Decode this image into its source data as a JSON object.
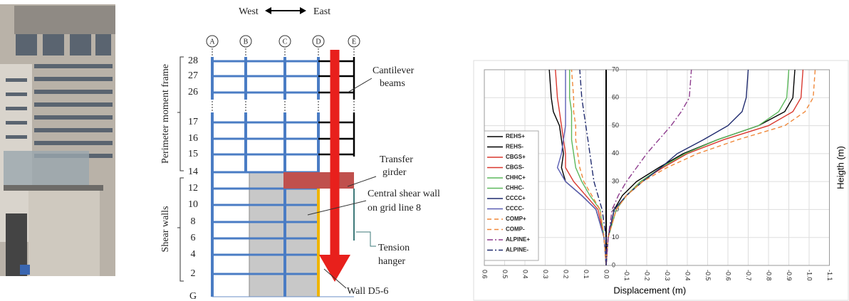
{
  "diagram": {
    "direction": {
      "west": "West",
      "east": "East"
    },
    "grid_lines": [
      "A",
      "B",
      "C",
      "D",
      "E"
    ],
    "floors": [
      "28",
      "27",
      "26",
      "17",
      "16",
      "15",
      "14",
      "12",
      "10",
      "8",
      "6",
      "4",
      "2",
      "G"
    ],
    "zones": {
      "upper": "Perimeter moment frame",
      "lower": "Shear walls"
    },
    "annotations": {
      "cantilever": [
        "Cantilever",
        "beams"
      ],
      "transfer": [
        "Transfer",
        "girder"
      ],
      "central": [
        "Central shear wall",
        "on grid line 8"
      ],
      "tension": [
        "Tension",
        "hanger"
      ],
      "wall": "Wall D5-6"
    }
  },
  "chart_data": {
    "type": "line",
    "xlabel": "Displacement (m)",
    "ylabel": "Heigth (m)",
    "xlim": [
      0.6,
      -1.1
    ],
    "xticks": [
      0.6,
      0.5,
      0.4,
      0.3,
      0.2,
      0.1,
      {
        "value": 0,
        "label": "0.0"
      },
      -0.1,
      -0.2,
      -0.3,
      -0.4,
      -0.5,
      -0.6,
      -0.7,
      -0.8,
      -0.9,
      {
        "value": -1,
        "label": "-1.0"
      },
      -1.1
    ],
    "ylim": [
      0,
      70
    ],
    "yticks": [
      0,
      10,
      20,
      30,
      40,
      50,
      60,
      70
    ],
    "grid": true,
    "legend": "left",
    "y": [
      0,
      10,
      20,
      25,
      30,
      35,
      40,
      45,
      50,
      55,
      60,
      70
    ],
    "series": [
      {
        "name": "REHS+",
        "color": "#000000",
        "dash": "solid",
        "values": [
          0,
          -0.01,
          -0.04,
          -0.08,
          -0.15,
          -0.26,
          -0.38,
          -0.55,
          -0.75,
          -0.88,
          -0.92,
          -0.93
        ]
      },
      {
        "name": "REHS-",
        "color": "#000000",
        "dash": "solid",
        "values": [
          0,
          0.01,
          0.05,
          0.12,
          0.2,
          0.22,
          0.21,
          0.22,
          0.23,
          0.26,
          0.27,
          0.28
        ]
      },
      {
        "name": "CBGS+",
        "color": "#d9382f",
        "dash": "solid",
        "values": [
          0,
          -0.01,
          -0.05,
          -0.1,
          -0.17,
          -0.28,
          -0.4,
          -0.58,
          -0.8,
          -0.92,
          -0.96,
          -0.97
        ]
      },
      {
        "name": "CBGS-",
        "color": "#d9382f",
        "dash": "solid",
        "values": [
          0,
          0.01,
          0.04,
          0.1,
          0.16,
          0.2,
          0.2,
          0.21,
          0.22,
          0.23,
          0.24,
          0.25
        ]
      },
      {
        "name": "CHHC+",
        "color": "#5cb85c",
        "dash": "solid",
        "values": [
          0,
          -0.01,
          -0.05,
          -0.1,
          -0.17,
          -0.27,
          -0.39,
          -0.55,
          -0.75,
          -0.85,
          -0.89,
          -0.9
        ]
      },
      {
        "name": "CHHC-",
        "color": "#5cb85c",
        "dash": "solid",
        "values": [
          0,
          0.01,
          0.03,
          0.08,
          0.12,
          0.15,
          0.16,
          0.17,
          0.17,
          0.17,
          0.18,
          0.18
        ]
      },
      {
        "name": "CCCC+",
        "color": "#1f2a6e",
        "dash": "solid",
        "values": [
          0,
          -0.01,
          -0.04,
          -0.1,
          -0.18,
          -0.27,
          -0.35,
          -0.48,
          -0.6,
          -0.67,
          -0.69,
          -0.7
        ]
      },
      {
        "name": "CCCC-",
        "color": "#5b5fb5",
        "dash": "solid",
        "values": [
          0,
          0.01,
          0.05,
          0.12,
          0.2,
          0.24,
          0.22,
          0.21,
          0.2,
          0.2,
          0.2,
          0.2
        ]
      },
      {
        "name": "COMP+",
        "color": "#f0883a",
        "dash": "dashed",
        "values": [
          0,
          -0.01,
          -0.05,
          -0.1,
          -0.18,
          -0.3,
          -0.45,
          -0.65,
          -0.88,
          -0.98,
          -1.02,
          -1.03
        ]
      },
      {
        "name": "COMP-",
        "color": "#f0883a",
        "dash": "dashed",
        "values": [
          0,
          0.01,
          0.03,
          0.07,
          0.11,
          0.13,
          0.14,
          0.15,
          0.15,
          0.16,
          0.16,
          0.17
        ]
      },
      {
        "name": "ALPINE+",
        "color": "#8e3c8e",
        "dash": "dashdot",
        "values": [
          0,
          -0.01,
          -0.03,
          -0.06,
          -0.1,
          -0.15,
          -0.2,
          -0.26,
          -0.32,
          -0.37,
          -0.41,
          -0.42
        ]
      },
      {
        "name": "ALPINE-",
        "color": "#1f2a6e",
        "dash": "dashdot",
        "values": [
          0,
          0,
          0.02,
          0.04,
          0.06,
          0.07,
          0.08,
          0.09,
          0.1,
          0.11,
          0.12,
          0.13
        ]
      }
    ]
  }
}
